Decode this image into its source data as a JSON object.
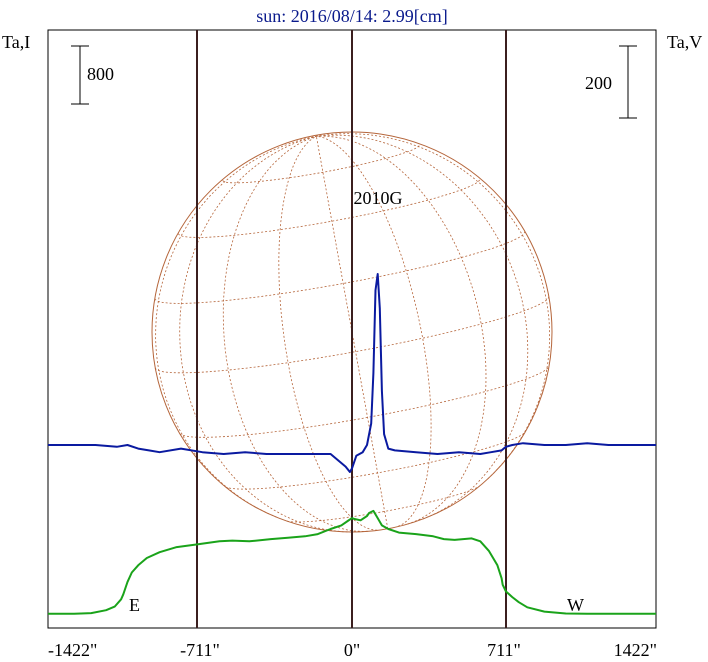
{
  "chart_data": {
    "type": "line",
    "title": "sun: 2016/08/14: 2.99[cm]",
    "left_axis_label": "Ta,I",
    "right_axis_label": "Ta,V",
    "left_scale_bar": "800",
    "right_scale_bar": "200",
    "x_ticks": [
      {
        "label": "-1422\"",
        "value": -1422
      },
      {
        "label": "-711\"",
        "value": -711
      },
      {
        "label": "0\"",
        "value": 0
      },
      {
        "label": "711\"",
        "value": 711
      },
      {
        "label": "1422\"",
        "value": 1422
      }
    ],
    "xlim": [
      -1422,
      1422
    ],
    "limb_lines": [
      -711,
      0,
      711
    ],
    "limb_labels": {
      "east": "E",
      "west": "W"
    },
    "source_label": "2010G",
    "colors": {
      "stokes_i": "#1aa31a",
      "stokes_v": "#0a1aa0",
      "disk": "#b5653a",
      "limb_line": "#3b1f1f",
      "title": "#0a1a8c"
    },
    "series": [
      {
        "name": "I",
        "x": [
          -1422,
          -1300,
          -1220,
          -1150,
          -1110,
          -1080,
          -1070,
          -1050,
          -1030,
          -1000,
          -960,
          -900,
          -820,
          -720,
          -620,
          -560,
          -480,
          -380,
          -300,
          -220,
          -160,
          -100,
          -50,
          -20,
          0,
          10,
          40,
          70,
          80,
          100,
          120,
          140,
          170,
          220,
          300,
          380,
          430,
          480,
          560,
          600,
          640,
          680,
          700,
          705,
          710,
          720,
          750,
          780,
          820,
          900,
          1000,
          1100,
          1200,
          1300,
          1422
        ],
        "y": [
          30,
          30,
          40,
          80,
          130,
          230,
          300,
          470,
          600,
          700,
          800,
          880,
          950,
          990,
          1030,
          1040,
          1030,
          1060,
          1080,
          1100,
          1130,
          1200,
          1250,
          1310,
          1350,
          1340,
          1320,
          1380,
          1420,
          1450,
          1350,
          1250,
          1200,
          1150,
          1130,
          1100,
          1060,
          1050,
          1070,
          1030,
          900,
          700,
          520,
          430,
          400,
          340,
          260,
          190,
          120,
          60,
          35,
          30,
          30,
          30,
          30
        ]
      },
      {
        "name": "V",
        "x": [
          -1422,
          -1200,
          -1100,
          -1050,
          -1000,
          -950,
          -900,
          -800,
          -700,
          -600,
          -500,
          -400,
          -300,
          -200,
          -100,
          -30,
          -10,
          0,
          20,
          50,
          70,
          90,
          100,
          110,
          120,
          130,
          140,
          150,
          170,
          200,
          300,
          400,
          500,
          600,
          650,
          700,
          720,
          750,
          800,
          900,
          1000,
          1100,
          1200,
          1300,
          1422
        ],
        "y": [
          0,
          0,
          -5,
          0,
          -10,
          -15,
          -20,
          -10,
          -20,
          -25,
          -20,
          -25,
          -25,
          -25,
          -25,
          -60,
          -75,
          -65,
          -30,
          -20,
          0,
          60,
          200,
          430,
          475,
          380,
          150,
          30,
          -10,
          -15,
          -20,
          -25,
          -20,
          -25,
          -20,
          -15,
          -5,
          0,
          5,
          0,
          0,
          5,
          0,
          0,
          0
        ]
      }
    ]
  }
}
